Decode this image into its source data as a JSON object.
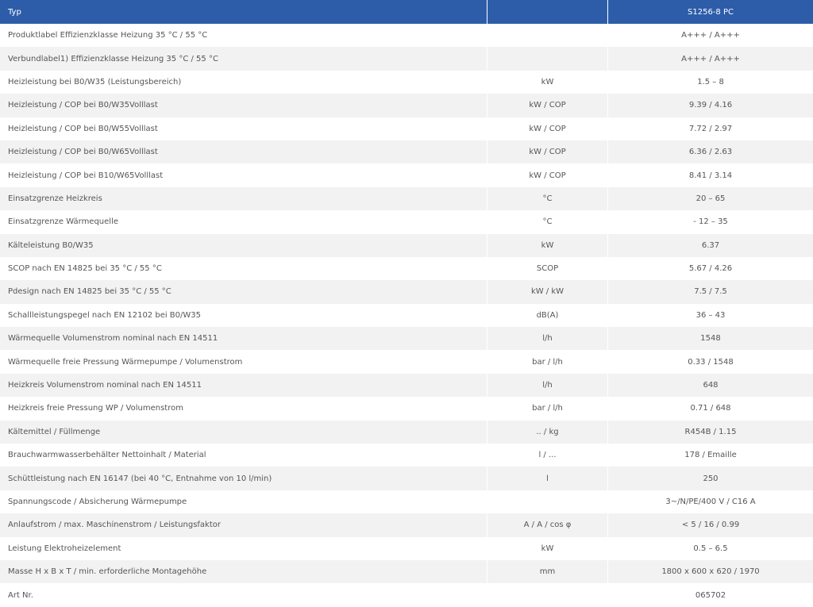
{
  "header": {
    "label": "Typ",
    "value": "S1256-8 PC"
  },
  "rows": [
    {
      "label": "Produktlabel Effizienzklasse Heizung 35 °C / 55 °C",
      "value": "A+++ / A+++"
    },
    {
      "label": "Verbundlabel1) Effizienzklasse Heizung 35 °C / 55 °C",
      "value": "A+++ / A+++"
    },
    {
      "label": "Heizleistung bei B0/W35 (Leistungsbereich)",
      "unit": "kW",
      "value": "1.5 – 8"
    },
    {
      "label": "Heizleistung / COP bei B0/W35Volllast",
      "unit": "kW / COP",
      "value": "9.39 / 4.16"
    },
    {
      "label": "Heizleistung / COP bei B0/W55Volllast",
      "unit": "kW / COP",
      "value": "7.72 / 2.97"
    },
    {
      "label": "Heizleistung / COP bei B0/W65Volllast",
      "unit": "kW / COP",
      "value": "6.36 / 2.63"
    },
    {
      "label": "Heizleistung / COP bei B10/W65Volllast",
      "unit": "kW / COP",
      "value": "8.41 / 3.14"
    },
    {
      "label": "Einsatzgrenze Heizkreis",
      "unit": "°C",
      "value": "20 – 65"
    },
    {
      "label": "Einsatzgrenze Wärmequelle",
      "unit": "°C",
      "value": "- 12 – 35"
    },
    {
      "label": "Kälteleistung B0/W35",
      "unit": "kW",
      "value": "6.37"
    },
    {
      "label": "SCOP nach EN 14825 bei 35 °C / 55 °C",
      "unit": "SCOP",
      "value": "5.67 / 4.26"
    },
    {
      "label": "Pdesign nach EN 14825 bei 35 °C / 55 °C",
      "unit": "kW / kW",
      "value": "7.5 / 7.5"
    },
    {
      "label": "Schallleistungspegel nach EN 12102 bei B0/W35",
      "unit": "dB(A)",
      "value": "36 – 43"
    },
    {
      "label": "Wärmequelle Volumenstrom nominal nach EN 14511",
      "unit": "l/h",
      "value": "1548"
    },
    {
      "label": "Wärmequelle freie Pressung Wärmepumpe / Volumenstrom",
      "unit": "bar / l/h",
      "value": "0.33 / 1548"
    },
    {
      "label": "Heizkreis Volumenstrom nominal nach EN 14511",
      "unit": "l/h",
      "value": "648"
    },
    {
      "label": "Heizkreis freie Pressung WP / Volumenstrom",
      "unit": "bar / l/h",
      "value": "0.71 / 648"
    },
    {
      "label": "Kältemittel / Füllmenge",
      "unit": ".. / kg",
      "value": "R454B / 1.15"
    },
    {
      "label": "Brauchwarmwasserbehälter Nettoinhalt / Material",
      "unit": "l / ...",
      "value": "178 / Emaille"
    },
    {
      "label": "Schüttleistung nach EN 16147 (bei 40 °C, Entnahme von 10 l/min)",
      "unit": "l",
      "value": "250"
    },
    {
      "label": "Spannungscode / Absicherung Wärmepumpe",
      "value": "3~/N/PE/400 V / C16 A"
    },
    {
      "label": "Anlaufstrom / max. Maschinenstrom / Leistungsfaktor",
      "unit": "A / A / cos φ",
      "value": "< 5 / 16 / 0.99"
    },
    {
      "label": "Leistung Elektroheizelement",
      "unit": "kW",
      "value": "0.5 – 6.5"
    },
    {
      "label": "Masse H x B x T / min. erforderliche Montagehöhe",
      "unit": "mm",
      "value": "1800 x 600 x 620 / 1970"
    },
    {
      "label": "Art Nr.",
      "value": "065702"
    }
  ]
}
